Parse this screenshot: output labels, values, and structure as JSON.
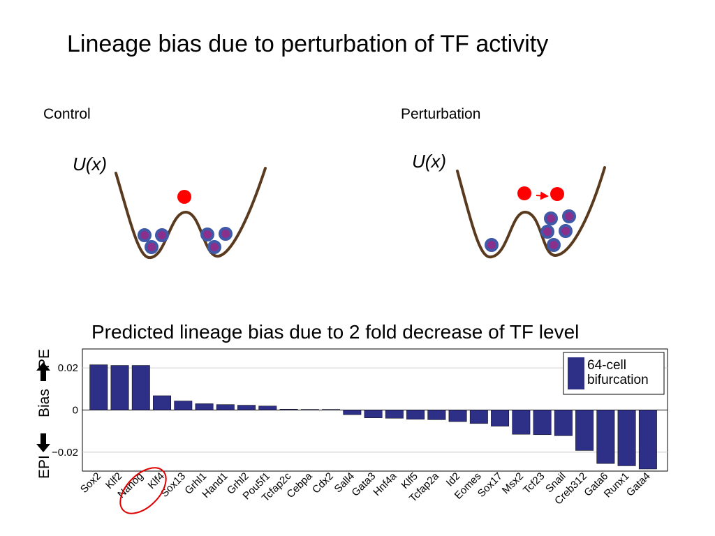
{
  "slide": {
    "title": "Lineage bias due to perturbation of TF activity",
    "control_label": "Control",
    "perturbation_label": "Perturbation",
    "potential_label": "U(x)",
    "colors": {
      "well": "#5a3a1e",
      "cell_fill": "#8a2f8c",
      "cell_ring": "#3f58a8",
      "ball": "#ff0000",
      "bar": "#2e2f86"
    }
  },
  "chart_data": {
    "type": "bar",
    "title": "Predicted lineage bias due to 2 fold decrease of TF level",
    "ylabel": "Bias",
    "ylabel_top": "PE",
    "ylabel_bottom": "EPI",
    "ylim": [
      -0.029,
      0.029
    ],
    "yticks": [
      {
        "value": 0.02,
        "label": "0.02"
      },
      {
        "value": 0,
        "label": "0"
      },
      {
        "value": -0.02,
        "label": "−0.02"
      }
    ],
    "grid": true,
    "legend": {
      "position": "top-right",
      "entries": [
        {
          "label": "64-cell bifurcation"
        }
      ]
    },
    "categories": [
      "Sox2",
      "Klf2",
      "Nanog",
      "Klf4",
      "Sox13",
      "Grhl1",
      "Hand1",
      "Grhl2",
      "Pou5f1",
      "Tcfap2c",
      "Cebpa",
      "Cdx2",
      "Sall4",
      "Gata3",
      "Hnf4a",
      "Klf5",
      "Tcfap2a",
      "Id2",
      "Eomes",
      "Sox17",
      "Msx2",
      "Tcf23",
      "Snail",
      "Creb312",
      "Gata6",
      "Runx1",
      "Gata4"
    ],
    "values": [
      0.0215,
      0.0212,
      0.0212,
      0.0068,
      0.0043,
      0.003,
      0.0026,
      0.0023,
      0.0019,
      0.0004,
      0.0003,
      0.0003,
      -0.0022,
      -0.0037,
      -0.0039,
      -0.0044,
      -0.0046,
      -0.0055,
      -0.0064,
      -0.0077,
      -0.0115,
      -0.0117,
      -0.0122,
      -0.0192,
      -0.0254,
      -0.0265,
      -0.028
    ],
    "highlighted_category": "Nanog"
  }
}
